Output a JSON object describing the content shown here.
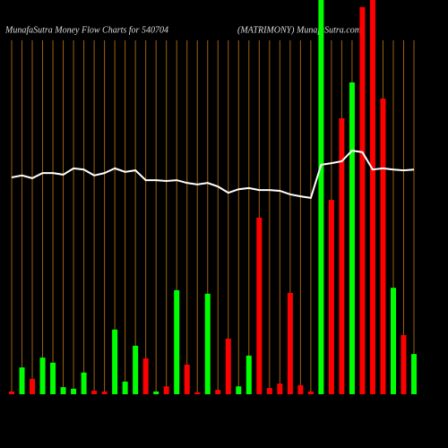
{
  "chart_data": {
    "type": "bar-line",
    "title": "MunafaSutra  Money Flow  Charts for 540704",
    "subtitle": "(MATRIMONY) MunafaSutra.com",
    "ylim": [
      0,
      100
    ],
    "grid": true,
    "grid_color": "#a0600f",
    "background": "#000000",
    "bars": {
      "values": [
        0.7,
        6.8,
        3.9,
        9.3,
        8,
        1.8,
        1.4,
        5.5,
        0.9,
        0.7,
        16.4,
        3.2,
        12.3,
        9.1,
        0.7,
        2,
        26.4,
        7.5,
        0.5,
        25.5,
        1.1,
        14.1,
        2,
        9.8,
        44.8,
        1.6,
        2.7,
        25.7,
        2.3,
        0.7,
        100,
        49.3,
        70,
        79.1,
        98.2,
        100,
        75,
        27,
        15,
        10.2
      ],
      "colors": [
        "#ff0000",
        "#00ff00",
        "#ff0000",
        "#00ff00",
        "#00ff00",
        "#00ff00",
        "#00ff00",
        "#00ff00",
        "#ff0000",
        "#ff0000",
        "#00ff00",
        "#00ff00",
        "#00ff00",
        "#ff0000",
        "#00ff00",
        "#ff0000",
        "#00ff00",
        "#ff0000",
        "#ff0000",
        "#00ff00",
        "#ff0000",
        "#ff0000",
        "#00ff00",
        "#00ff00",
        "#ff0000",
        "#ff0000",
        "#ff0000",
        "#ff0000",
        "#ff0000",
        "#ff0000",
        "#00ff00",
        "#ff0000",
        "#ff0000",
        "#00ff00",
        "#ff0000",
        "#ff0000",
        "#ff0000",
        "#00ff00",
        "#ff0000",
        "#00ff00"
      ]
    },
    "line": {
      "color": "#ffffff",
      "values": [
        55,
        55.5,
        54.8,
        56.1,
        56.1,
        55.7,
        57.3,
        57,
        55.5,
        56.1,
        57.3,
        56.4,
        56.8,
        54.3,
        54.3,
        54.1,
        54.3,
        53.6,
        53.2,
        53.6,
        52.7,
        51.1,
        52,
        52.3,
        51.8,
        51.8,
        51.6,
        50.7,
        50.2,
        49.8,
        58.2,
        58.6,
        59.1,
        61.8,
        61.4,
        57,
        57.3,
        57,
        56.8,
        57
      ]
    }
  }
}
